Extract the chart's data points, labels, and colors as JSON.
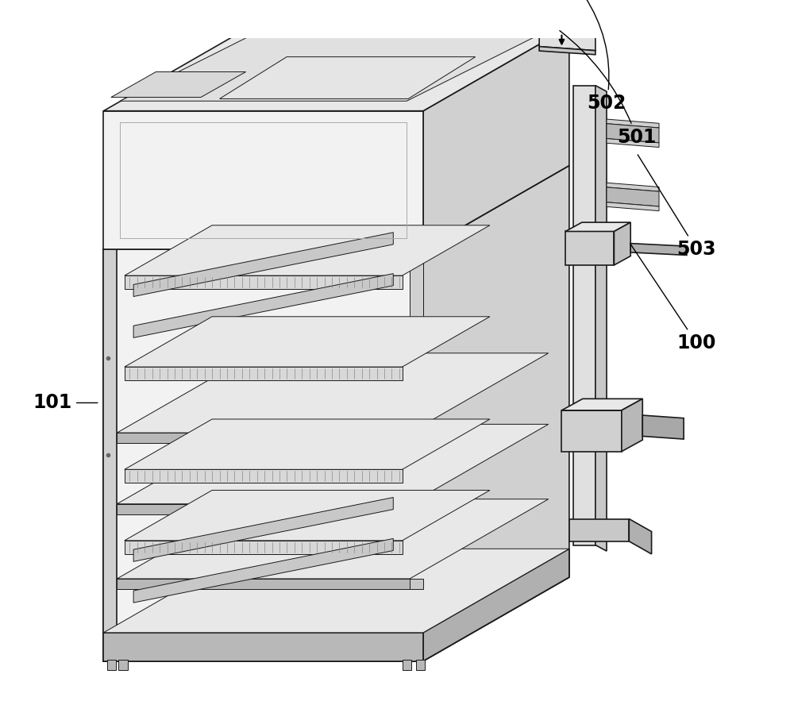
{
  "bg_color": "#ffffff",
  "lc": "#1a1a1a",
  "fill_top": "#e8e8e8",
  "fill_front": "#f2f2f2",
  "fill_right": "#d0d0d0",
  "fill_dark": "#b8b8b8",
  "fill_light": "#f8f8f8",
  "fill_inner": "#ececec",
  "figsize": [
    10.0,
    9.17
  ],
  "dpi": 100
}
